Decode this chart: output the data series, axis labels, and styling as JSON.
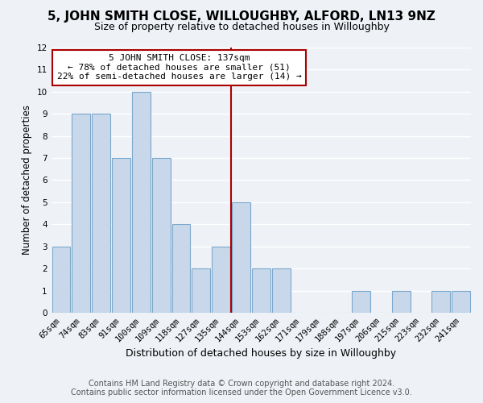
{
  "title": "5, JOHN SMITH CLOSE, WILLOUGHBY, ALFORD, LN13 9NZ",
  "subtitle": "Size of property relative to detached houses in Willoughby",
  "xlabel": "Distribution of detached houses by size in Willoughby",
  "ylabel": "Number of detached properties",
  "footer_line1": "Contains HM Land Registry data © Crown copyright and database right 2024.",
  "footer_line2": "Contains public sector information licensed under the Open Government Licence v3.0.",
  "categories": [
    "65sqm",
    "74sqm",
    "83sqm",
    "91sqm",
    "100sqm",
    "109sqm",
    "118sqm",
    "127sqm",
    "135sqm",
    "144sqm",
    "153sqm",
    "162sqm",
    "171sqm",
    "179sqm",
    "188sqm",
    "197sqm",
    "206sqm",
    "215sqm",
    "223sqm",
    "232sqm",
    "241sqm"
  ],
  "values": [
    3,
    9,
    9,
    7,
    10,
    7,
    4,
    2,
    3,
    5,
    2,
    2,
    0,
    0,
    0,
    1,
    0,
    1,
    0,
    1,
    1
  ],
  "bar_color": "#c8d8ea",
  "bar_edgecolor": "#7aa8cc",
  "reference_line_x": 8.5,
  "reference_line_color": "#aa0000",
  "annotation_title": "5 JOHN SMITH CLOSE: 137sqm",
  "annotation_line1": "← 78% of detached houses are smaller (51)",
  "annotation_line2": "22% of semi-detached houses are larger (14) →",
  "annotation_box_color": "#ffffff",
  "annotation_box_edgecolor": "#aa0000",
  "ylim": [
    0,
    12
  ],
  "yticks": [
    0,
    1,
    2,
    3,
    4,
    5,
    6,
    7,
    8,
    9,
    10,
    11,
    12
  ],
  "background_color": "#eef2f7",
  "grid_color": "#ffffff",
  "title_fontsize": 11,
  "subtitle_fontsize": 9,
  "xlabel_fontsize": 9,
  "ylabel_fontsize": 8.5,
  "tick_fontsize": 7.5,
  "footer_fontsize": 7
}
